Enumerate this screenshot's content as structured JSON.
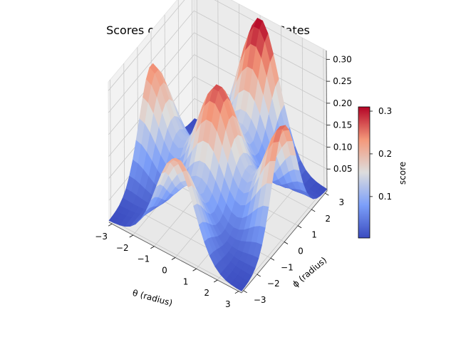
{
  "chart_data": {
    "type": "surface3d",
    "title": "Scores of Different Activation Gates",
    "xlabel": "θ (radius)",
    "ylabel": "ϕ (radius)",
    "zlabel": "",
    "xticks": [
      -3,
      -2,
      -1,
      0,
      1,
      2,
      3
    ],
    "yticks": [
      -3,
      -2,
      -1,
      0,
      1,
      2,
      3
    ],
    "zticks": [
      0.05,
      0.1,
      0.15,
      0.2,
      0.25,
      0.3
    ],
    "xlim": [
      -3.14,
      3.14
    ],
    "ylim": [
      -3.14,
      3.14
    ],
    "zlim": [
      0.0,
      0.32
    ],
    "grid": true,
    "colormap": "coolwarm",
    "colorbar": {
      "label": "score",
      "ticks": [
        0.1,
        0.2,
        0.3
      ],
      "min": 0.003,
      "max": 0.31
    },
    "surface": {
      "x_range": [
        -3.14,
        3.14
      ],
      "y_range": [
        -3.14,
        3.14
      ],
      "resolution": 25,
      "peaks": [
        {
          "x": -3.14,
          "y": 0.0,
          "height": 0.24,
          "width": 0.9
        },
        {
          "x": 0.0,
          "y": 3.14,
          "height": 0.31,
          "width": 0.9
        },
        {
          "x": 0.0,
          "y": 0.0,
          "height": 0.27,
          "width": 0.9
        },
        {
          "x": 3.14,
          "y": 0.0,
          "height": 0.26,
          "width": 0.9
        },
        {
          "x": 0.0,
          "y": -3.14,
          "height": 0.22,
          "width": 0.9
        }
      ],
      "base": 0.003
    }
  }
}
